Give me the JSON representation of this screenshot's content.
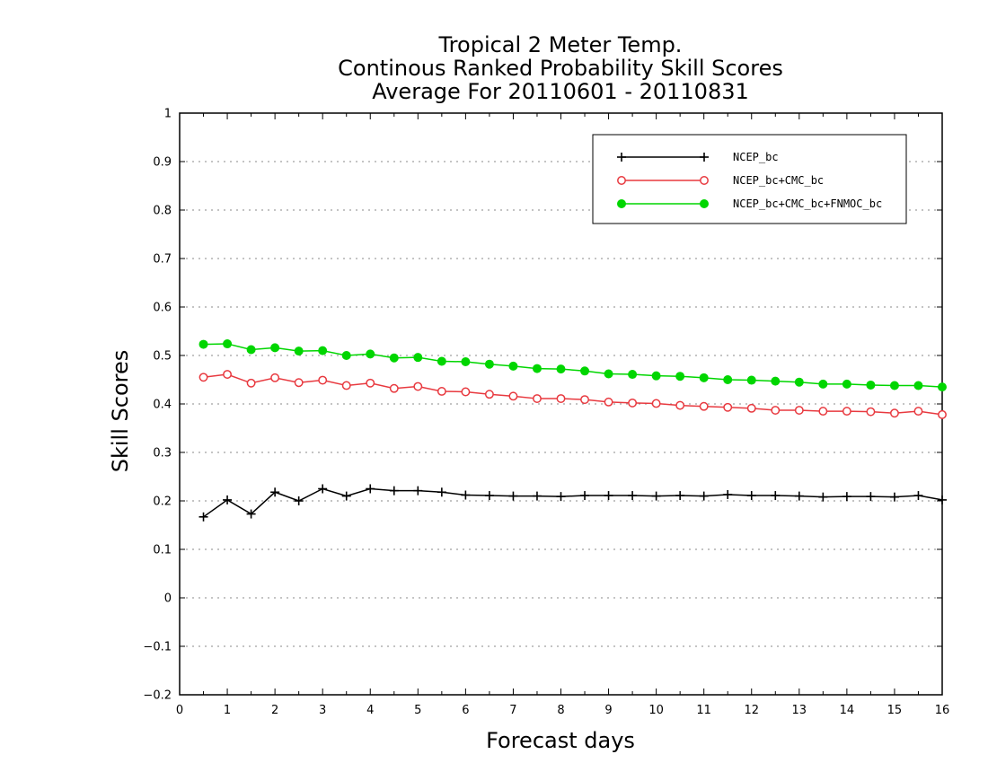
{
  "chart_data": {
    "type": "line",
    "title_lines": [
      "Tropical 2 Meter Temp.",
      "Continous Ranked Probability Skill Scores",
      "Average For 20110601 - 20110831"
    ],
    "xlabel": "Forecast days",
    "ylabel": "Skill Scores",
    "xlim": [
      0,
      16
    ],
    "ylim": [
      -0.2,
      1
    ],
    "xticks": [
      "0",
      "1",
      "2",
      "3",
      "4",
      "5",
      "6",
      "7",
      "8",
      "9",
      "10",
      "11",
      "12",
      "13",
      "14",
      "15",
      "16"
    ],
    "yticks": [
      "-0.2",
      "-0.1",
      "0",
      "0.1",
      "0.2",
      "0.3",
      "0.4",
      "0.5",
      "0.6",
      "0.7",
      "0.8",
      "0.9",
      "1"
    ],
    "grid": "horizontal dotted",
    "legend_position": "top-right",
    "x": [
      0.5,
      1,
      1.5,
      2,
      2.5,
      3,
      3.5,
      4,
      4.5,
      5,
      5.5,
      6,
      6.5,
      7,
      7.5,
      8,
      8.5,
      9,
      9.5,
      10,
      10.5,
      11,
      11.5,
      12,
      12.5,
      13,
      13.5,
      14,
      14.5,
      15,
      15.5,
      16
    ],
    "series": [
      {
        "name": "NCEP_bc",
        "color": "#000000",
        "marker": "plus",
        "values": [
          0.167,
          0.202,
          0.173,
          0.218,
          0.2,
          0.225,
          0.21,
          0.225,
          0.221,
          0.221,
          0.218,
          0.212,
          0.211,
          0.21,
          0.21,
          0.209,
          0.211,
          0.211,
          0.211,
          0.21,
          0.211,
          0.21,
          0.213,
          0.211,
          0.211,
          0.21,
          0.208,
          0.209,
          0.209,
          0.208,
          0.211,
          0.202
        ]
      },
      {
        "name": "NCEP_bc+CMC_bc",
        "color": "#e8393f",
        "marker": "open-circle",
        "values": [
          0.455,
          0.461,
          0.443,
          0.454,
          0.444,
          0.449,
          0.438,
          0.443,
          0.432,
          0.436,
          0.426,
          0.425,
          0.42,
          0.416,
          0.411,
          0.411,
          0.409,
          0.404,
          0.402,
          0.401,
          0.397,
          0.395,
          0.393,
          0.391,
          0.387,
          0.387,
          0.385,
          0.385,
          0.384,
          0.381,
          0.385,
          0.378
        ]
      },
      {
        "name": "NCEP_bc+CMC_bc+FNMOC_bc",
        "color": "#00d600",
        "marker": "filled-circle",
        "values": [
          0.523,
          0.524,
          0.512,
          0.516,
          0.509,
          0.51,
          0.5,
          0.503,
          0.495,
          0.496,
          0.488,
          0.487,
          0.482,
          0.478,
          0.473,
          0.472,
          0.468,
          0.462,
          0.461,
          0.458,
          0.457,
          0.454,
          0.45,
          0.449,
          0.447,
          0.445,
          0.441,
          0.441,
          0.439,
          0.438,
          0.438,
          0.435
        ]
      }
    ]
  }
}
